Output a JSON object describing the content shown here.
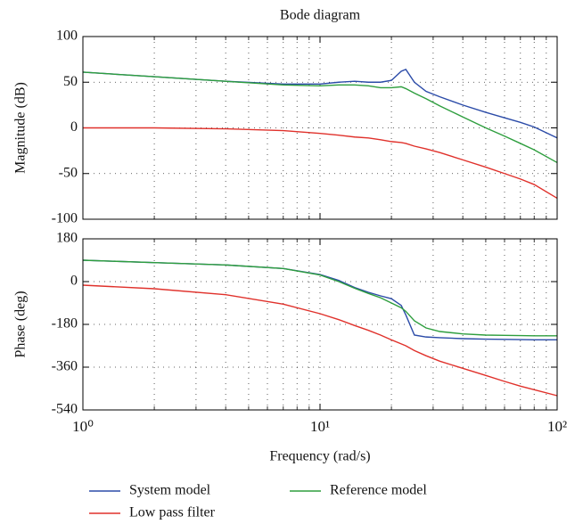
{
  "chart_data": [
    {
      "type": "line",
      "title": "Bode diagram",
      "ylabel": "Magnitude (dB)",
      "x": [
        1,
        2,
        4,
        7,
        10,
        12,
        14,
        16,
        18,
        20,
        22,
        23,
        25,
        28,
        32,
        40,
        50,
        60,
        70,
        80,
        100
      ],
      "series": [
        {
          "name": "System model",
          "color": "#2b4ba8",
          "values": [
            61,
            56,
            51,
            48,
            48,
            50,
            51,
            50,
            50,
            52,
            62,
            64,
            50,
            40,
            34,
            25,
            17,
            11,
            6,
            1,
            -11
          ]
        },
        {
          "name": "Reference model",
          "color": "#2e9e3e",
          "values": [
            61,
            56,
            51,
            47,
            46,
            47,
            47,
            46,
            44,
            44,
            45,
            43,
            38,
            32,
            24,
            12,
            0,
            -9,
            -17,
            -24,
            -38
          ]
        },
        {
          "name": "Low pass filter",
          "color": "#e0312b",
          "values": [
            0,
            0,
            -1,
            -3,
            -6,
            -8,
            -10,
            -11,
            -13,
            -15,
            -16,
            -17,
            -20,
            -23,
            -27,
            -35,
            -43,
            -50,
            -56,
            -62,
            -77
          ]
        }
      ],
      "xscale": "log",
      "xlim": [
        1,
        100
      ],
      "xticks": [
        1,
        10,
        100
      ],
      "ylim": [
        -100,
        100
      ],
      "yticks": [
        100,
        50,
        0,
        -50,
        -100
      ],
      "grid": true,
      "minor_grid": true
    },
    {
      "type": "line",
      "ylabel": "Phase (deg)",
      "xlabel": "Frequency (rad/s)",
      "x": [
        1,
        2,
        4,
        7,
        10,
        12,
        14,
        16,
        18,
        20,
        22,
        23,
        25,
        28,
        32,
        40,
        50,
        60,
        70,
        80,
        100
      ],
      "series": [
        {
          "name": "System model",
          "color": "#2b4ba8",
          "values": [
            90,
            80,
            70,
            55,
            30,
            5,
            -25,
            -45,
            -60,
            -72,
            -100,
            -140,
            -225,
            -233,
            -236,
            -240,
            -242,
            -243,
            -244,
            -245,
            -245
          ]
        },
        {
          "name": "Reference model",
          "color": "#2e9e3e",
          "values": [
            90,
            80,
            70,
            55,
            28,
            0,
            -28,
            -50,
            -68,
            -90,
            -110,
            -125,
            -165,
            -195,
            -210,
            -220,
            -225,
            -226,
            -227,
            -228,
            -228
          ]
        },
        {
          "name": "Low pass filter",
          "color": "#e0312b",
          "values": [
            -15,
            -30,
            -55,
            -95,
            -135,
            -160,
            -185,
            -205,
            -225,
            -245,
            -262,
            -270,
            -290,
            -312,
            -335,
            -365,
            -395,
            -420,
            -440,
            -455,
            -480
          ]
        }
      ],
      "xscale": "log",
      "xlim": [
        1,
        100
      ],
      "xticks": [
        {
          "value": 1,
          "label": "10⁰"
        },
        {
          "value": 10,
          "label": "10¹"
        },
        {
          "value": 100,
          "label": "10²"
        }
      ],
      "ylim": [
        -540,
        180
      ],
      "yticks": [
        180,
        0,
        -180,
        -360,
        -540
      ],
      "grid": true,
      "minor_grid": true
    }
  ]
}
